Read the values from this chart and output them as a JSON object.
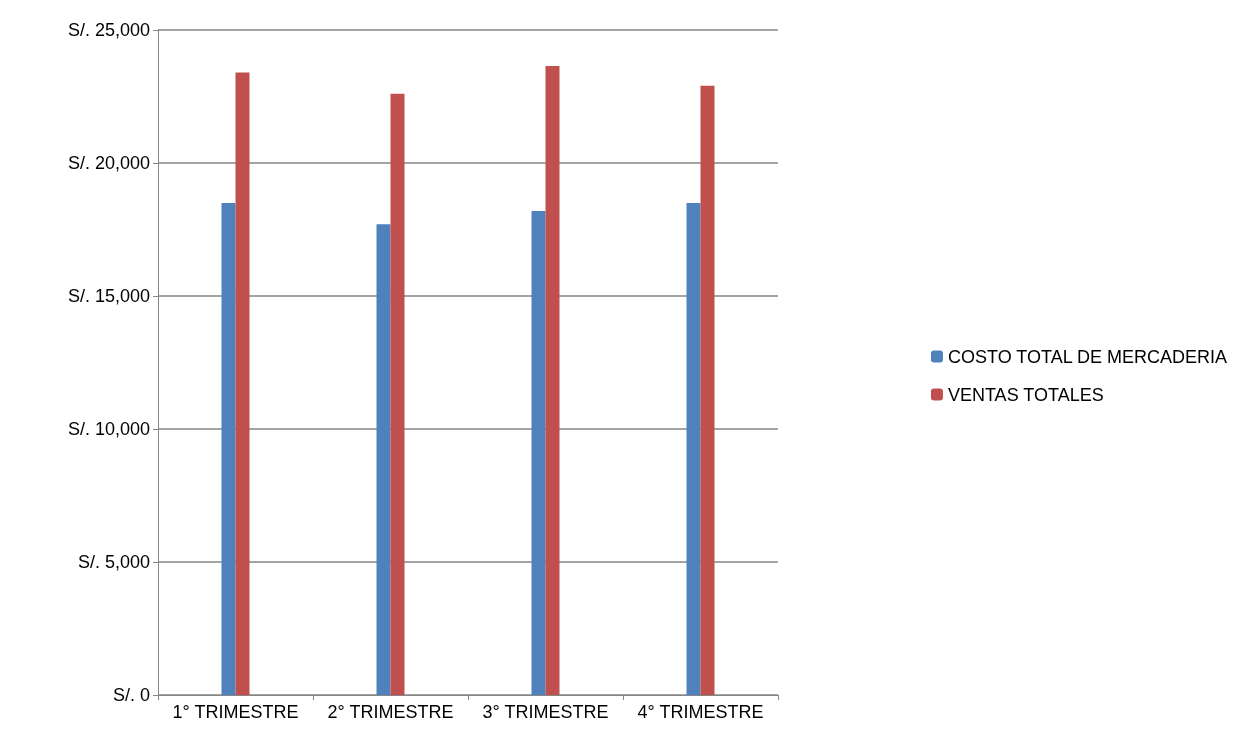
{
  "chart_data": {
    "type": "bar",
    "categories": [
      "1° TRIMESTRE",
      "2° TRIMESTRE",
      "3° TRIMESTRE",
      "4° TRIMESTRE"
    ],
    "series": [
      {
        "name": "COSTO TOTAL DE MERCADERIA",
        "color": "#4f81bd",
        "values": [
          18500,
          17700,
          18200,
          18500
        ]
      },
      {
        "name": "VENTAS TOTALES",
        "color": "#c0504d",
        "values": [
          23400,
          22600,
          23650,
          22900
        ]
      }
    ],
    "ylim": [
      0,
      25000
    ],
    "yticks": [
      {
        "value": 0,
        "label": "S/. 0"
      },
      {
        "value": 5000,
        "label": "S/. 5,000"
      },
      {
        "value": 10000,
        "label": "S/. 10,000"
      },
      {
        "value": 15000,
        "label": "S/. 15,000"
      },
      {
        "value": 20000,
        "label": "S/. 20,000"
      },
      {
        "value": 25000,
        "label": "S/. 25,000"
      }
    ],
    "grid": "y",
    "legend": "right"
  }
}
